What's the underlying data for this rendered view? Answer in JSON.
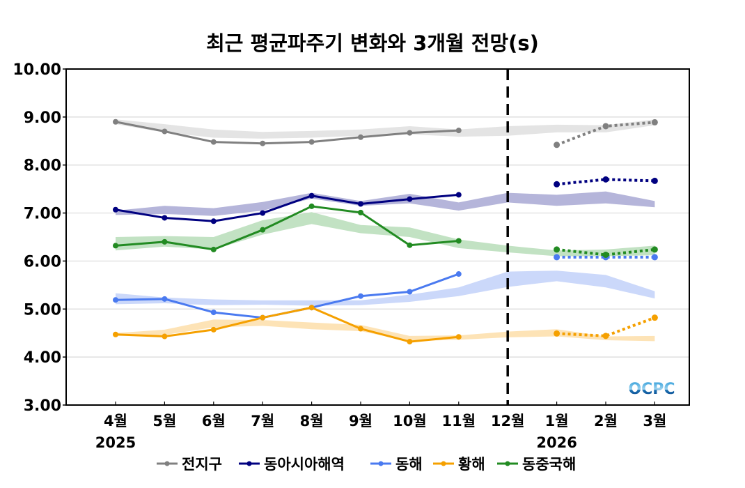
{
  "chart_data": {
    "type": "line",
    "title": "최근 평균파주기 변화와 3개월 전망(s)",
    "xlabel": "",
    "ylabel": "",
    "ylim": [
      3.0,
      10.0
    ],
    "yticks": [
      "3.00",
      "4.00",
      "5.00",
      "6.00",
      "7.00",
      "8.00",
      "9.00",
      "10.00"
    ],
    "categories": [
      "4월",
      "5월",
      "6월",
      "7월",
      "8월",
      "9월",
      "10월",
      "11월",
      "12월",
      "1월",
      "2월",
      "3월"
    ],
    "year_labels": [
      {
        "category": "4월",
        "text": "2025"
      },
      {
        "category": "1월",
        "text": "2026"
      }
    ],
    "divider_after_category": "12월",
    "grid": true,
    "legend_position": "bottom",
    "series": [
      {
        "name": "전지구",
        "color": "#808080",
        "band_color": "#e3e3e3",
        "observed": [
          8.9,
          8.7,
          8.48,
          8.45,
          8.48,
          8.58,
          8.67,
          8.72,
          null,
          null,
          null,
          null
        ],
        "forecast": [
          null,
          null,
          null,
          null,
          null,
          null,
          null,
          null,
          null,
          8.42,
          8.81,
          8.89
        ],
        "band_upper": [
          8.95,
          8.85,
          8.74,
          8.69,
          8.71,
          8.74,
          8.81,
          8.74,
          8.81,
          8.84,
          8.83,
          8.95
        ],
        "band_lower": [
          8.85,
          8.68,
          8.57,
          8.55,
          8.57,
          8.61,
          8.64,
          8.59,
          8.61,
          8.68,
          8.68,
          8.83
        ]
      },
      {
        "name": "동아시아해역",
        "color": "#000080",
        "band_color": "#b1b1d8",
        "observed": [
          7.07,
          6.9,
          6.83,
          7.0,
          7.36,
          7.19,
          7.29,
          7.38,
          null,
          null,
          null,
          null
        ],
        "forecast": [
          null,
          null,
          null,
          null,
          null,
          null,
          null,
          null,
          null,
          7.6,
          7.7,
          7.67
        ],
        "band_upper": [
          7.05,
          7.15,
          7.1,
          7.23,
          7.42,
          7.25,
          7.4,
          7.22,
          7.42,
          7.38,
          7.45,
          7.25
        ],
        "band_lower": [
          6.96,
          6.98,
          6.94,
          7.05,
          7.3,
          7.15,
          7.2,
          7.05,
          7.22,
          7.15,
          7.2,
          7.12
        ]
      },
      {
        "name": "동해",
        "color": "#4a7af0",
        "band_color": "#c8d6fa",
        "observed": [
          5.19,
          5.21,
          4.93,
          4.82,
          5.03,
          5.27,
          5.36,
          5.73,
          null,
          null,
          null,
          null
        ],
        "forecast": [
          null,
          null,
          null,
          null,
          null,
          null,
          null,
          null,
          null,
          6.08,
          6.08,
          6.08
        ],
        "band_upper": [
          5.33,
          5.24,
          5.2,
          5.18,
          5.18,
          5.18,
          5.3,
          5.45,
          5.78,
          5.8,
          5.71,
          5.37
        ],
        "band_lower": [
          5.1,
          5.12,
          5.08,
          5.09,
          5.07,
          5.08,
          5.15,
          5.27,
          5.46,
          5.58,
          5.45,
          5.22
        ]
      },
      {
        "name": "황해",
        "color": "#f5a000",
        "band_color": "#fde2b2",
        "observed": [
          4.47,
          4.43,
          4.57,
          4.82,
          5.03,
          4.59,
          4.32,
          4.42,
          null,
          null,
          null,
          null
        ],
        "forecast": [
          null,
          null,
          null,
          null,
          null,
          null,
          null,
          null,
          null,
          4.49,
          4.44,
          4.82
        ],
        "band_upper": [
          4.5,
          4.57,
          4.78,
          4.77,
          4.72,
          4.67,
          4.44,
          4.45,
          4.53,
          4.58,
          4.43,
          4.44
        ],
        "band_lower": [
          4.44,
          4.46,
          4.62,
          4.65,
          4.58,
          4.54,
          4.33,
          4.36,
          4.41,
          4.43,
          4.35,
          4.33
        ]
      },
      {
        "name": "동중국해",
        "color": "#228b22",
        "band_color": "#bfe0c0",
        "observed": [
          6.32,
          6.4,
          6.24,
          6.65,
          7.14,
          7.01,
          6.33,
          6.42,
          null,
          null,
          null,
          null
        ],
        "forecast": [
          null,
          null,
          null,
          null,
          null,
          null,
          null,
          null,
          null,
          6.24,
          6.13,
          6.24
        ],
        "band_upper": [
          6.5,
          6.52,
          6.5,
          6.85,
          7.02,
          6.75,
          6.7,
          6.45,
          6.32,
          6.22,
          6.24,
          6.32
        ],
        "band_lower": [
          6.22,
          6.3,
          6.24,
          6.55,
          6.77,
          6.58,
          6.5,
          6.27,
          6.18,
          6.1,
          6.1,
          6.12
        ]
      }
    ],
    "logo": "OCPC"
  }
}
